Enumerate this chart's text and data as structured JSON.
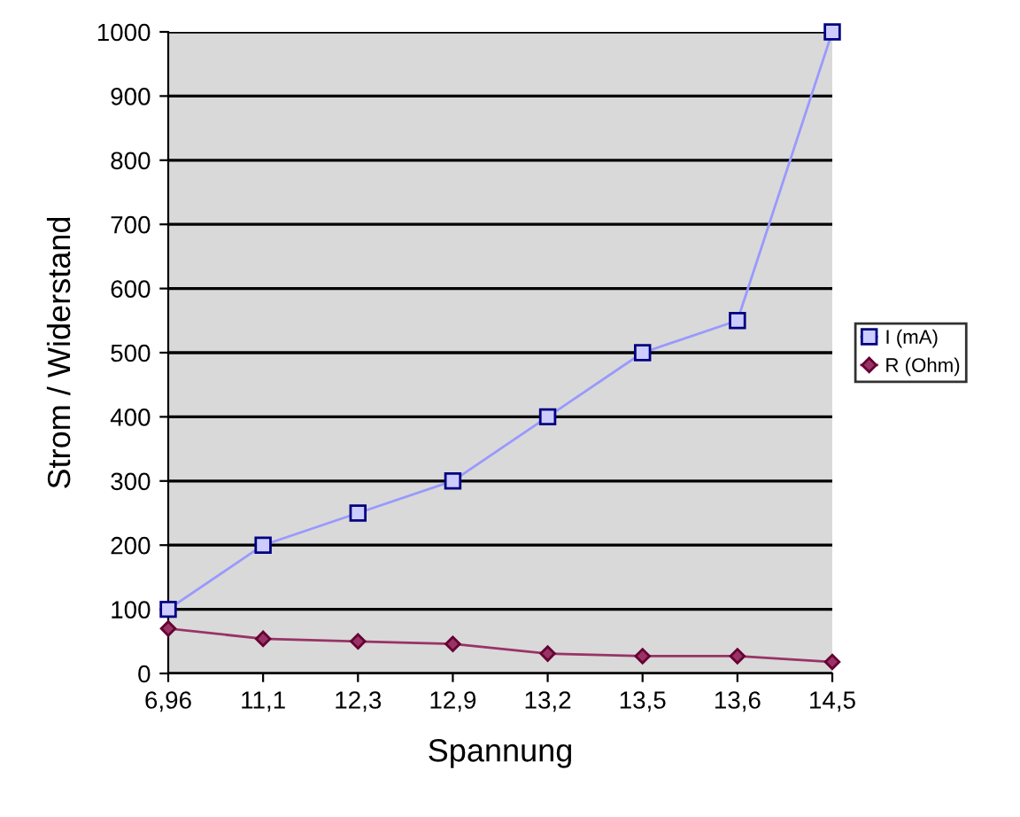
{
  "chart_data": {
    "type": "line",
    "xlabel": "Spannung",
    "ylabel": "Strom / Widerstand",
    "categories": [
      "6,96",
      "11,1",
      "12,3",
      "12,9",
      "13,2",
      "13,5",
      "13,6",
      "14,5"
    ],
    "series": [
      {
        "name": "I (mA)",
        "color": "#9999ff",
        "marker": "square",
        "values": [
          100,
          200,
          250,
          300,
          400,
          500,
          550,
          1000
        ]
      },
      {
        "name": "R (Ohm)",
        "color": "#993366",
        "marker": "diamond",
        "values": [
          70,
          54,
          50,
          46,
          31,
          27,
          27,
          18
        ]
      }
    ],
    "ylim": [
      0,
      1000
    ],
    "yticks": [
      0,
      100,
      200,
      300,
      400,
      500,
      600,
      700,
      800,
      900,
      1000
    ],
    "grid": "y",
    "legend": "right",
    "line_style": "solid"
  }
}
